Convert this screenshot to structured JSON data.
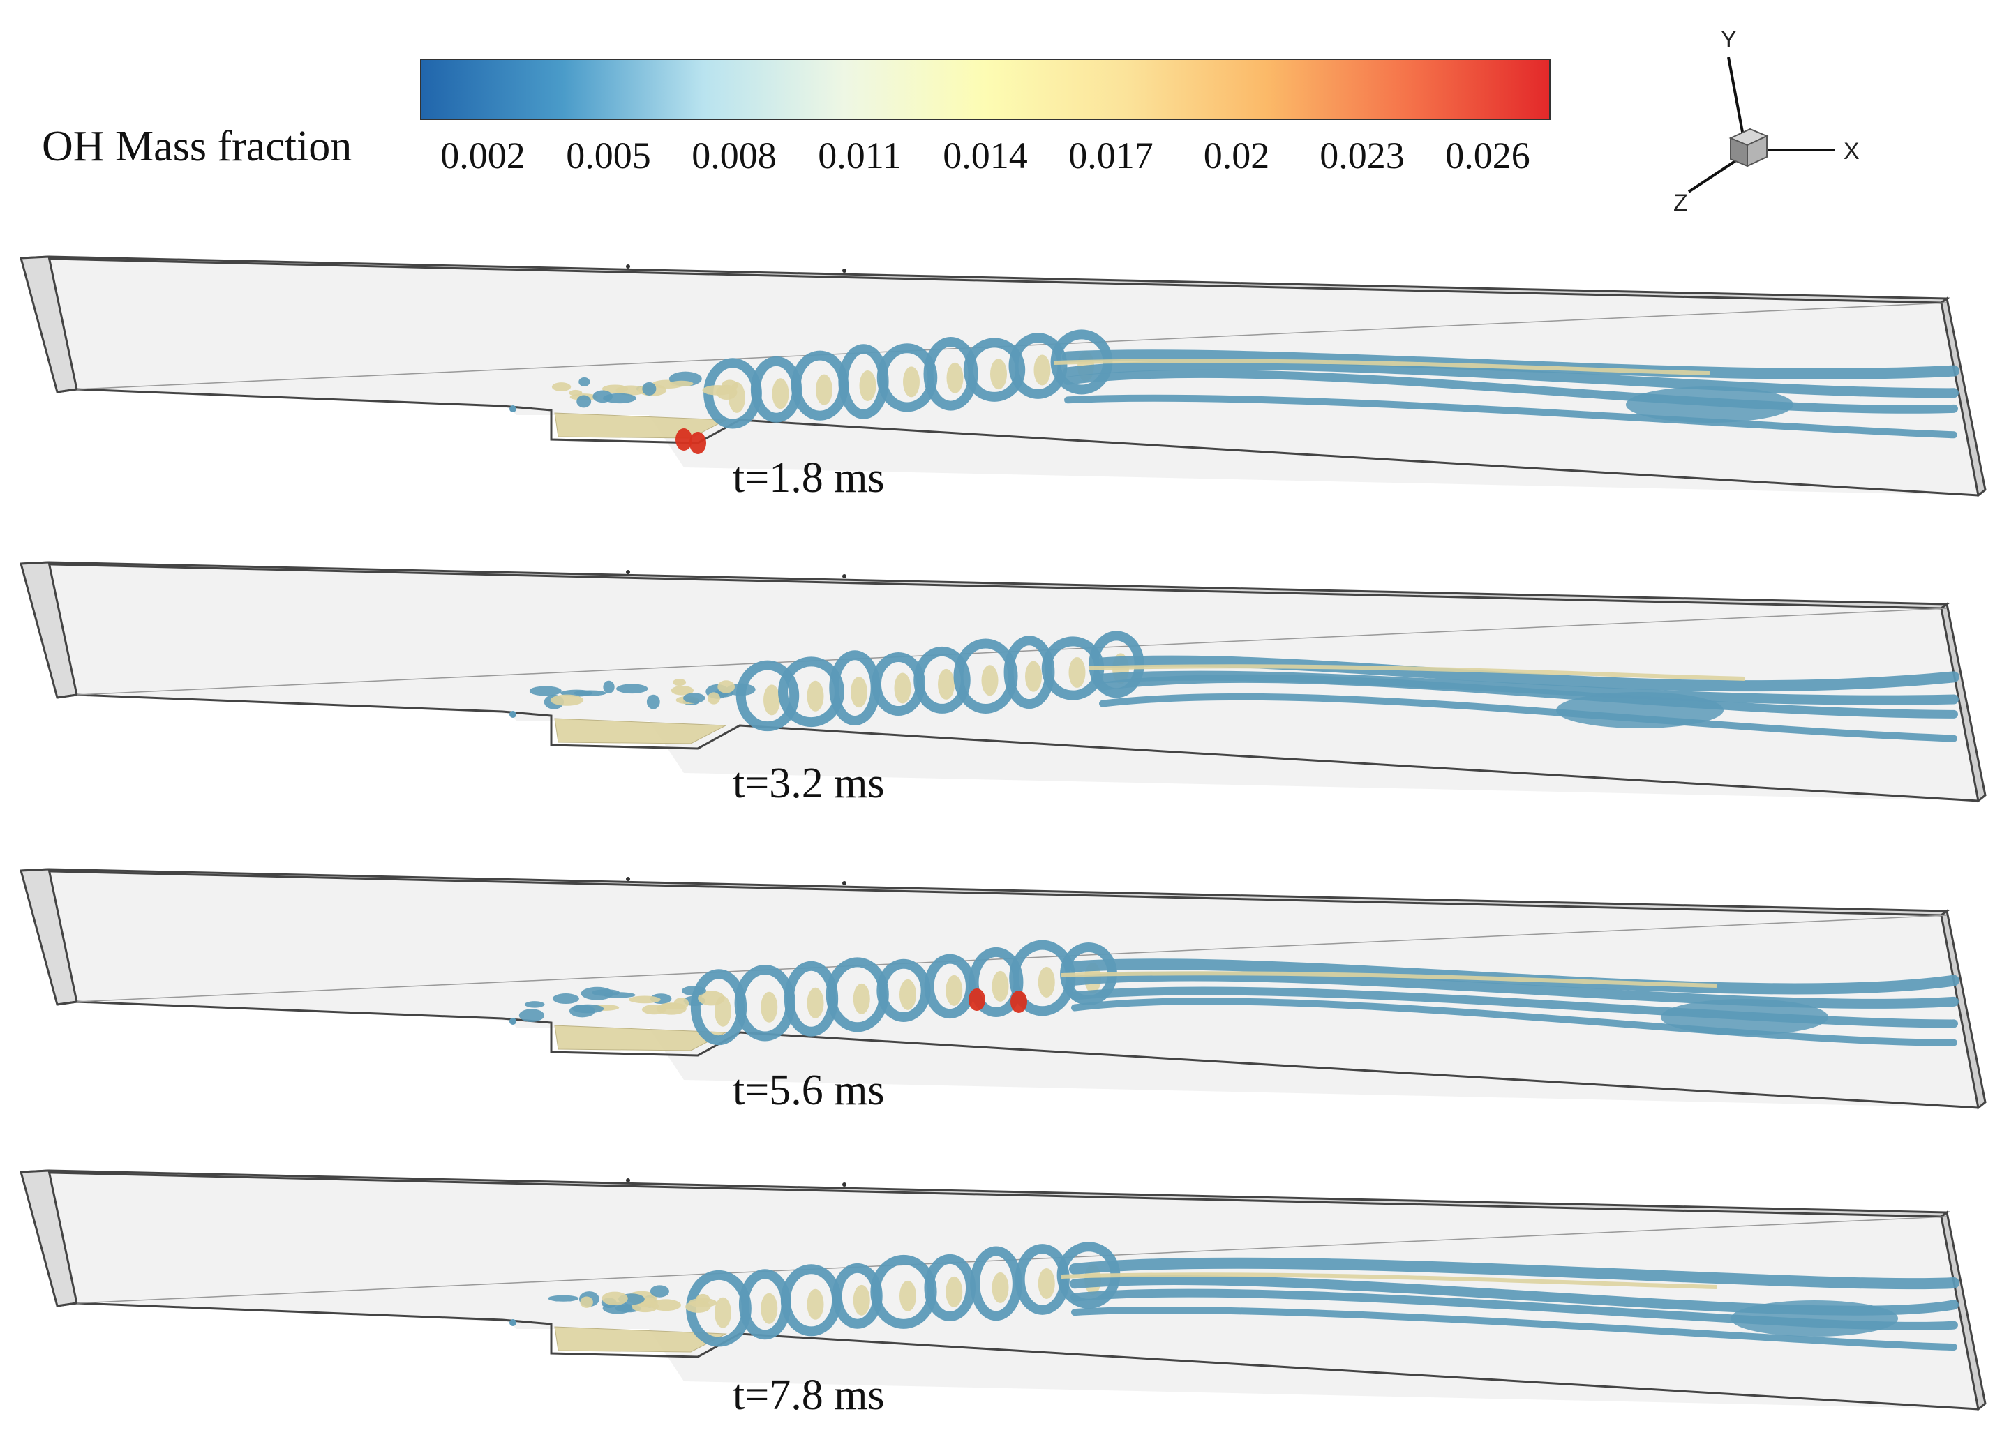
{
  "colorbar": {
    "title": "OH Mass fraction",
    "ticks": [
      "0.002",
      "0.005",
      "0.008",
      "0.011",
      "0.014",
      "0.017",
      "0.02",
      "0.023",
      "0.026"
    ],
    "tick_values": [
      0.002,
      0.005,
      0.008,
      0.011,
      0.014,
      0.017,
      0.02,
      0.023,
      0.026
    ],
    "range": [
      0.0005,
      0.0275
    ],
    "colors": [
      "#2166ac",
      "#4a9bc9",
      "#b9e3ef",
      "#eef7e4",
      "#fdfcb3",
      "#fbe39a",
      "#fbb968",
      "#f5734a",
      "#e3292a"
    ]
  },
  "axes_triad": {
    "x": "X",
    "y": "Y",
    "z": "Z"
  },
  "iso_colors": {
    "low": "#5c9ab8",
    "mid": "#ddd3a0",
    "high": "#d8321f"
  },
  "panels": [
    {
      "time": "t=1.8 ms"
    },
    {
      "time": "t=3.2 ms"
    },
    {
      "time": "t=5.6 ms"
    },
    {
      "time": "t=7.8 ms"
    }
  ]
}
